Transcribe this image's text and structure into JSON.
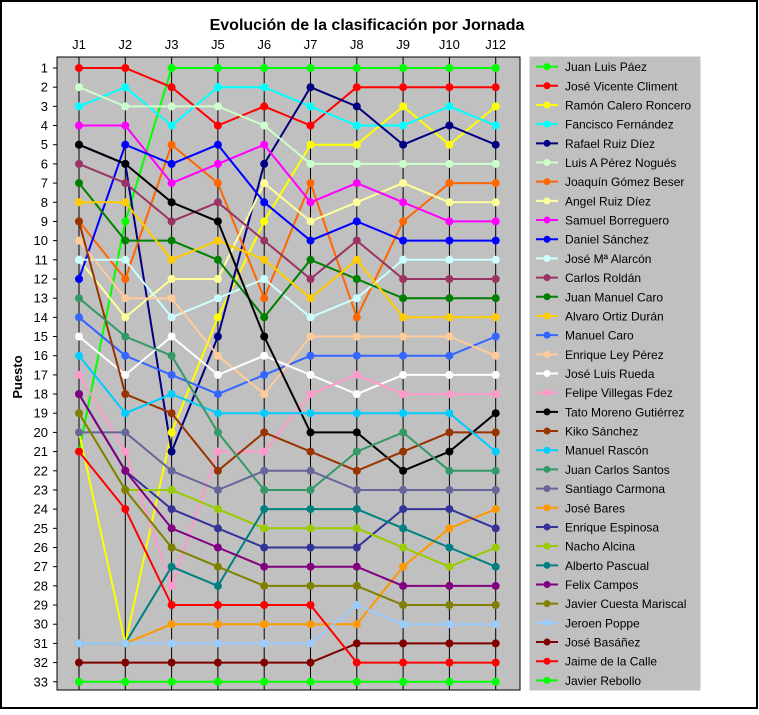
{
  "chart_data": {
    "type": "line",
    "title": "Evolución de la clasificación por Jornada",
    "ylabel": "Puesto",
    "xlabel": "",
    "categories": [
      "J1",
      "J2",
      "J3",
      "J5",
      "J6",
      "J7",
      "J8",
      "J9",
      "J10",
      "J12"
    ],
    "y_ticks": [
      "1",
      "2",
      "3",
      "4",
      "5",
      "6",
      "7",
      "8",
      "9",
      "10",
      "11",
      "12",
      "13",
      "14",
      "15",
      "16",
      "17",
      "18",
      "19",
      "20",
      "21",
      "22",
      "23",
      "24",
      "25",
      "26",
      "27",
      "28",
      "29",
      "30",
      "31",
      "32",
      "33"
    ],
    "ylim": [
      1,
      33
    ],
    "y_inverted": true,
    "grid": "vertical",
    "legend_position": "right",
    "plot_background": "#c0c0c0",
    "series": [
      {
        "name": "Juan Luis Páez",
        "color": "#00ff00",
        "values": [
          21,
          9,
          1,
          1,
          1,
          1,
          1,
          1,
          1,
          1
        ]
      },
      {
        "name": "José Vicente Climent",
        "color": "#ff0000",
        "values": [
          1,
          1,
          2,
          4,
          3,
          4,
          2,
          2,
          2,
          2
        ]
      },
      {
        "name": "Ramón Calero Roncero",
        "color": "#ffff00",
        "values": [
          20,
          31,
          20,
          14,
          9,
          5,
          5,
          3,
          5,
          3
        ]
      },
      {
        "name": "Fancisco Fernández",
        "color": "#00ffff",
        "values": [
          3,
          2,
          4,
          2,
          2,
          3,
          4,
          4,
          3,
          4
        ]
      },
      {
        "name": "Rafael Ruiz Díez",
        "color": "#000080",
        "values": [
          5,
          6,
          21,
          15,
          6,
          2,
          3,
          5,
          4,
          5
        ]
      },
      {
        "name": "Luis A Pérez Nogués",
        "color": "#ccffcc",
        "values": [
          2,
          3,
          3,
          3,
          4,
          6,
          6,
          6,
          6,
          6
        ]
      },
      {
        "name": "Joaquín Gómez Beser",
        "color": "#ff6600",
        "values": [
          9,
          12,
          5,
          7,
          13,
          7,
          14,
          9,
          7,
          7
        ]
      },
      {
        "name": "Angel Ruiz Díez",
        "color": "#ffff99",
        "values": [
          11,
          14,
          12,
          12,
          7,
          9,
          8,
          7,
          8,
          8
        ]
      },
      {
        "name": "Samuel Borreguero",
        "color": "#ff00ff",
        "values": [
          4,
          4,
          7,
          6,
          5,
          8,
          7,
          8,
          9,
          9
        ]
      },
      {
        "name": "Daniel Sánchez",
        "color": "#0000ff",
        "values": [
          12,
          5,
          6,
          5,
          8,
          10,
          9,
          10,
          10,
          10
        ]
      },
      {
        "name": "José Mª Alarcón",
        "color": "#ccffff",
        "values": [
          11,
          11,
          14,
          13,
          12,
          14,
          13,
          11,
          11,
          11
        ]
      },
      {
        "name": "Carlos Roldán",
        "color": "#993366",
        "values": [
          6,
          7,
          9,
          8,
          10,
          12,
          10,
          12,
          12,
          12
        ]
      },
      {
        "name": "Juan Manuel Caro",
        "color": "#008000",
        "values": [
          7,
          10,
          10,
          11,
          14,
          11,
          12,
          13,
          13,
          13
        ]
      },
      {
        "name": "Alvaro Ortiz Durán",
        "color": "#ffcc00",
        "values": [
          8,
          8,
          11,
          10,
          11,
          13,
          11,
          14,
          14,
          14
        ]
      },
      {
        "name": "Manuel Caro",
        "color": "#3366ff",
        "values": [
          14,
          16,
          17,
          18,
          17,
          16,
          16,
          16,
          16,
          15
        ]
      },
      {
        "name": "Enrique Ley Pérez",
        "color": "#ffcc99",
        "values": [
          10,
          13,
          13,
          16,
          18,
          15,
          15,
          15,
          15,
          16
        ]
      },
      {
        "name": "José Luis Rueda",
        "color": "#ffffff",
        "values": [
          15,
          17,
          15,
          17,
          16,
          17,
          18,
          17,
          17,
          17
        ]
      },
      {
        "name": "Felipe Villegas Fdez",
        "color": "#ff99cc",
        "values": [
          17,
          21,
          28,
          21,
          21,
          18,
          17,
          18,
          18,
          18
        ]
      },
      {
        "name": "Tato Moreno Gutiérrez",
        "color": "#000000",
        "values": [
          5,
          6,
          8,
          9,
          15,
          20,
          20,
          22,
          21,
          19
        ]
      },
      {
        "name": "Kiko Sánchez",
        "color": "#993300",
        "values": [
          9,
          18,
          19,
          22,
          20,
          21,
          22,
          21,
          20,
          20
        ]
      },
      {
        "name": "Manuel Rascón",
        "color": "#00ccff",
        "values": [
          16,
          19,
          18,
          19,
          19,
          19,
          19,
          19,
          19,
          21
        ]
      },
      {
        "name": "Juan Carlos Santos",
        "color": "#339966",
        "values": [
          13,
          15,
          16,
          20,
          23,
          23,
          21,
          20,
          22,
          22
        ]
      },
      {
        "name": "Santiago Carmona",
        "color": "#666699",
        "values": [
          20,
          20,
          22,
          23,
          22,
          22,
          23,
          23,
          23,
          23
        ]
      },
      {
        "name": "José Bares",
        "color": "#ff9900",
        "values": [
          31,
          31,
          30,
          30,
          30,
          30,
          30,
          27,
          25,
          24
        ]
      },
      {
        "name": "Enrique Espinosa",
        "color": "#333399",
        "values": [
          18,
          22,
          24,
          25,
          26,
          26,
          26,
          24,
          24,
          25
        ]
      },
      {
        "name": "Nacho Alcina",
        "color": "#99cc00",
        "values": [
          19,
          23,
          23,
          24,
          25,
          25,
          25,
          26,
          27,
          26
        ]
      },
      {
        "name": "Alberto Pascual",
        "color": "#008080",
        "values": [
          31,
          31,
          27,
          28,
          24,
          24,
          24,
          25,
          26,
          27
        ]
      },
      {
        "name": "Felix Campos",
        "color": "#800080",
        "values": [
          18,
          22,
          25,
          26,
          27,
          27,
          27,
          28,
          28,
          28
        ]
      },
      {
        "name": "Javier Cuesta Mariscal",
        "color": "#808000",
        "values": [
          19,
          23,
          26,
          27,
          28,
          28,
          28,
          29,
          29,
          29
        ]
      },
      {
        "name": "Jeroen Poppe",
        "color": "#99ccff",
        "values": [
          31,
          31,
          31,
          31,
          31,
          31,
          29,
          30,
          30,
          30
        ]
      },
      {
        "name": "José Basáñez",
        "color": "#800000",
        "values": [
          32,
          32,
          32,
          32,
          32,
          32,
          31,
          31,
          31,
          31
        ]
      },
      {
        "name": "Jaime de la Calle",
        "color": "#ff0000",
        "values": [
          21,
          24,
          29,
          29,
          29,
          29,
          32,
          32,
          32,
          32
        ]
      },
      {
        "name": "Javier Rebollo",
        "color": "#00ff00",
        "values": [
          33,
          33,
          33,
          33,
          33,
          33,
          33,
          33,
          33,
          33
        ]
      }
    ]
  }
}
